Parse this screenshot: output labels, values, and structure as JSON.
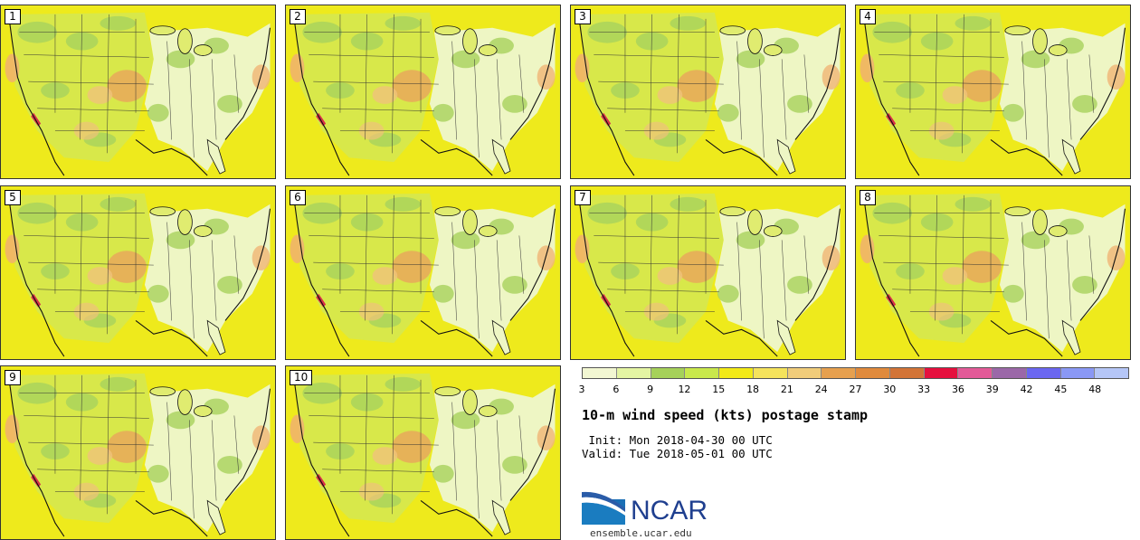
{
  "panels": [
    {
      "label": "1"
    },
    {
      "label": "2"
    },
    {
      "label": "3"
    },
    {
      "label": "4"
    },
    {
      "label": "5"
    },
    {
      "label": "6"
    },
    {
      "label": "7"
    },
    {
      "label": "8"
    },
    {
      "label": "9"
    },
    {
      "label": "10"
    }
  ],
  "colorbar": {
    "ticks": [
      "3",
      "6",
      "9",
      "12",
      "15",
      "18",
      "21",
      "24",
      "27",
      "30",
      "33",
      "36",
      "39",
      "42",
      "45",
      "48"
    ],
    "colors": [
      "#f2f7d2",
      "#e4f5a3",
      "#a6d15a",
      "#c9e84c",
      "#f2ea17",
      "#f5e35c",
      "#f0cc7a",
      "#e6a04f",
      "#e08a3c",
      "#d27437",
      "#e5103e",
      "#e35a98",
      "#9b68a8",
      "#6b67f0",
      "#8a98f5",
      "#b5c6f7"
    ]
  },
  "title": "10-m wind speed (kts) postage stamp",
  "init": " Init: Mon 2018-04-30 00 UTC",
  "valid": "Valid: Tue 2018-05-01 00 UTC",
  "logo": {
    "text": "NCAR",
    "url": "ensemble.ucar.edu"
  }
}
